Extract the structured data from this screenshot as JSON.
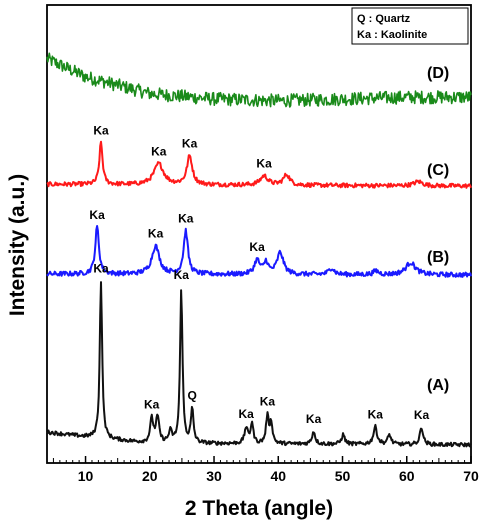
{
  "chart_data": {
    "type": "line",
    "xlabel": "2 Theta (angle)",
    "ylabel": "Intensity (a.u.)",
    "xlim": [
      4,
      70
    ],
    "xticks": [
      10,
      20,
      30,
      40,
      50,
      60,
      70
    ],
    "y_ticks_shown": false,
    "legend": {
      "placement": "top-right",
      "lines": [
        "Q : Quartz",
        "Ka : Kaolinite"
      ]
    },
    "series": [
      {
        "name": "(D)",
        "color": "#1a8a1a",
        "baseline": [
          [
            4,
            0.72
          ],
          [
            10,
            0.42
          ],
          [
            20,
            0.14
          ],
          [
            30,
            0.05
          ],
          [
            40,
            0.02
          ],
          [
            50,
            0.05
          ],
          [
            60,
            0.08
          ],
          [
            70,
            0.08
          ]
        ],
        "noise": 0.11,
        "peaks": []
      },
      {
        "name": "(C)",
        "color": "#ff1a1a",
        "baseline": [
          [
            4,
            0.04
          ],
          [
            70,
            0.0
          ]
        ],
        "noise": 0.05,
        "peaks": [
          {
            "x": 12.4,
            "h": 1.0,
            "w": 0.3,
            "label": "Ka"
          },
          {
            "x": 21.4,
            "h": 0.5,
            "w": 0.9,
            "label": "Ka"
          },
          {
            "x": 26.2,
            "h": 0.68,
            "w": 0.5,
            "label": "Ka"
          },
          {
            "x": 37.8,
            "h": 0.22,
            "w": 0.7,
            "label": "Ka"
          },
          {
            "x": 41.3,
            "h": 0.25,
            "w": 0.6
          },
          {
            "x": 61.8,
            "h": 0.1,
            "w": 0.8
          }
        ]
      },
      {
        "name": "(B)",
        "color": "#1a1aff",
        "baseline": [
          [
            4,
            0.02
          ],
          [
            70,
            0.0
          ]
        ],
        "noise": 0.05,
        "peaks": [
          {
            "x": 11.8,
            "h": 1.0,
            "w": 0.35,
            "label": "Ka"
          },
          {
            "x": 20.9,
            "h": 0.6,
            "w": 0.7,
            "label": "Ka"
          },
          {
            "x": 25.6,
            "h": 0.92,
            "w": 0.4,
            "label": "Ka"
          },
          {
            "x": 36.7,
            "h": 0.3,
            "w": 0.5,
            "label": "Ka"
          },
          {
            "x": 38.1,
            "h": 0.25,
            "w": 0.4
          },
          {
            "x": 40.3,
            "h": 0.46,
            "w": 0.6
          },
          {
            "x": 48.3,
            "h": 0.14,
            "w": 0.5
          },
          {
            "x": 55.2,
            "h": 0.08,
            "w": 0.5
          },
          {
            "x": 60.6,
            "h": 0.26,
            "w": 0.9
          }
        ]
      },
      {
        "name": "(A)",
        "color": "#111111",
        "baseline": [
          [
            4,
            0.1
          ],
          [
            10,
            0.07
          ],
          [
            20,
            0.03
          ],
          [
            70,
            0.02
          ]
        ],
        "noise": 0.012,
        "peaks": [
          {
            "x": 12.4,
            "h": 1.0,
            "w": 0.22,
            "label": "Ka"
          },
          {
            "x": 20.3,
            "h": 0.15,
            "w": 0.3,
            "label": "Ka"
          },
          {
            "x": 21.2,
            "h": 0.16,
            "w": 0.3
          },
          {
            "x": 23.2,
            "h": 0.07,
            "w": 0.3
          },
          {
            "x": 24.9,
            "h": 0.98,
            "w": 0.22,
            "label": "Ka"
          },
          {
            "x": 26.6,
            "h": 0.21,
            "w": 0.25,
            "label": "Q"
          },
          {
            "x": 35.0,
            "h": 0.1,
            "w": 0.3,
            "label": "Ka"
          },
          {
            "x": 35.9,
            "h": 0.13,
            "w": 0.25
          },
          {
            "x": 38.3,
            "h": 0.17,
            "w": 0.25,
            "label": "Ka"
          },
          {
            "x": 38.9,
            "h": 0.13,
            "w": 0.25
          },
          {
            "x": 45.5,
            "h": 0.08,
            "w": 0.3,
            "label": "Ka"
          },
          {
            "x": 50.1,
            "h": 0.06,
            "w": 0.3
          },
          {
            "x": 55.1,
            "h": 0.11,
            "w": 0.35,
            "label": "Ka"
          },
          {
            "x": 57.3,
            "h": 0.06,
            "w": 0.3
          },
          {
            "x": 62.3,
            "h": 0.11,
            "w": 0.3,
            "label": "Ka"
          }
        ]
      }
    ]
  }
}
